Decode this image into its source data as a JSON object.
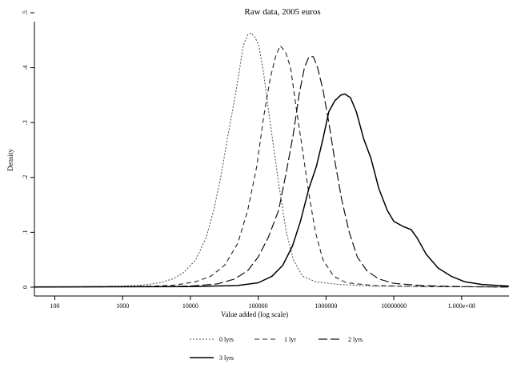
{
  "chart_data": {
    "type": "line",
    "title": "Raw data, 2005 euros",
    "xlabel": "Value added (log scale)",
    "ylabel": "Density",
    "x_scale": "log",
    "xlim": [
      50,
      500000000
    ],
    "ylim": [
      0,
      0.5
    ],
    "x_ticks": [
      {
        "value": 100,
        "label": "100"
      },
      {
        "value": 1000,
        "label": "1000"
      },
      {
        "value": 10000,
        "label": "10000"
      },
      {
        "value": 100000,
        "label": "100000"
      },
      {
        "value": 1000000,
        "label": "1000000"
      },
      {
        "value": 10000000,
        "label": "10000000"
      },
      {
        "value": 100000000,
        "label": "1.000e+08"
      }
    ],
    "y_ticks": [
      {
        "value": 0,
        "label": "0"
      },
      {
        "value": 0.1,
        "label": ".1"
      },
      {
        "value": 0.2,
        "label": ".2"
      },
      {
        "value": 0.3,
        "label": ".3"
      },
      {
        "value": 0.4,
        "label": ".4"
      },
      {
        "value": 0.5,
        "label": ".5"
      }
    ],
    "grid": false,
    "legend_position": "bottom",
    "series": [
      {
        "name": "0 lyrs",
        "style": "dotted",
        "color": "#555555",
        "points": [
          [
            50,
            0.001
          ],
          [
            300,
            0.001
          ],
          [
            1000,
            0.002
          ],
          [
            2000,
            0.004
          ],
          [
            3500,
            0.008
          ],
          [
            5500,
            0.015
          ],
          [
            8000,
            0.027
          ],
          [
            12000,
            0.05
          ],
          [
            17000,
            0.09
          ],
          [
            22000,
            0.14
          ],
          [
            28000,
            0.2
          ],
          [
            35000,
            0.27
          ],
          [
            43000,
            0.33
          ],
          [
            52000,
            0.39
          ],
          [
            60000,
            0.44
          ],
          [
            70000,
            0.46
          ],
          [
            80000,
            0.463
          ],
          [
            90000,
            0.455
          ],
          [
            102000,
            0.44
          ],
          [
            120000,
            0.39
          ],
          [
            150000,
            0.3
          ],
          [
            200000,
            0.19
          ],
          [
            260000,
            0.1
          ],
          [
            330000,
            0.05
          ],
          [
            450000,
            0.02
          ],
          [
            700000,
            0.01
          ],
          [
            1500000,
            0.005
          ],
          [
            5000000,
            0.002
          ],
          [
            50000000,
            0.001
          ],
          [
            500000000,
            0.0005
          ]
        ]
      },
      {
        "name": "1 lyr",
        "style": "dashed-short",
        "color": "#222222",
        "points": [
          [
            50,
            0.0005
          ],
          [
            1000,
            0.001
          ],
          [
            3000,
            0.002
          ],
          [
            6000,
            0.004
          ],
          [
            12000,
            0.01
          ],
          [
            20000,
            0.02
          ],
          [
            32000,
            0.04
          ],
          [
            50000,
            0.08
          ],
          [
            70000,
            0.14
          ],
          [
            95000,
            0.22
          ],
          [
            120000,
            0.31
          ],
          [
            150000,
            0.38
          ],
          [
            180000,
            0.42
          ],
          [
            210000,
            0.44
          ],
          [
            250000,
            0.43
          ],
          [
            300000,
            0.4
          ],
          [
            360000,
            0.33
          ],
          [
            450000,
            0.25
          ],
          [
            560000,
            0.17
          ],
          [
            700000,
            0.1
          ],
          [
            900000,
            0.05
          ],
          [
            1300000,
            0.02
          ],
          [
            2000000,
            0.008
          ],
          [
            5000000,
            0.003
          ],
          [
            30000000,
            0.001
          ],
          [
            500000000,
            0.0005
          ]
        ]
      },
      {
        "name": "2 lyrs",
        "style": "dashed-long",
        "color": "#111111",
        "points": [
          [
            50,
            0.0005
          ],
          [
            3000,
            0.001
          ],
          [
            10000,
            0.002
          ],
          [
            25000,
            0.006
          ],
          [
            45000,
            0.015
          ],
          [
            70000,
            0.03
          ],
          [
            100000,
            0.055
          ],
          [
            140000,
            0.09
          ],
          [
            200000,
            0.14
          ],
          [
            260000,
            0.21
          ],
          [
            330000,
            0.28
          ],
          [
            400000,
            0.35
          ],
          [
            480000,
            0.4
          ],
          [
            560000,
            0.42
          ],
          [
            650000,
            0.42
          ],
          [
            750000,
            0.4
          ],
          [
            900000,
            0.36
          ],
          [
            1100000,
            0.3
          ],
          [
            1350000,
            0.23
          ],
          [
            1700000,
            0.16
          ],
          [
            2200000,
            0.1
          ],
          [
            2900000,
            0.055
          ],
          [
            4000000,
            0.03
          ],
          [
            6000000,
            0.015
          ],
          [
            10000000,
            0.007
          ],
          [
            25000000,
            0.003
          ],
          [
            100000000,
            0.001
          ],
          [
            500000000,
            0.0005
          ]
        ]
      },
      {
        "name": "3 lyrs",
        "style": "solid",
        "color": "#000000",
        "points": [
          [
            50,
            0.0005
          ],
          [
            10000,
            0.001
          ],
          [
            50000,
            0.003
          ],
          [
            100000,
            0.008
          ],
          [
            160000,
            0.02
          ],
          [
            230000,
            0.04
          ],
          [
            320000,
            0.075
          ],
          [
            420000,
            0.12
          ],
          [
            560000,
            0.18
          ],
          [
            720000,
            0.22
          ],
          [
            900000,
            0.27
          ],
          [
            1100000,
            0.32
          ],
          [
            1350000,
            0.34
          ],
          [
            1650000,
            0.35
          ],
          [
            1900000,
            0.352
          ],
          [
            2300000,
            0.345
          ],
          [
            2800000,
            0.32
          ],
          [
            3600000,
            0.27
          ],
          [
            4600000,
            0.235
          ],
          [
            6000000,
            0.18
          ],
          [
            8000000,
            0.14
          ],
          [
            10000000,
            0.12
          ],
          [
            14000000,
            0.11
          ],
          [
            18000000,
            0.105
          ],
          [
            22000000,
            0.09
          ],
          [
            30000000,
            0.06
          ],
          [
            45000000,
            0.035
          ],
          [
            70000000,
            0.02
          ],
          [
            110000000,
            0.01
          ],
          [
            200000000,
            0.005
          ],
          [
            500000000,
            0.002
          ]
        ]
      }
    ]
  }
}
